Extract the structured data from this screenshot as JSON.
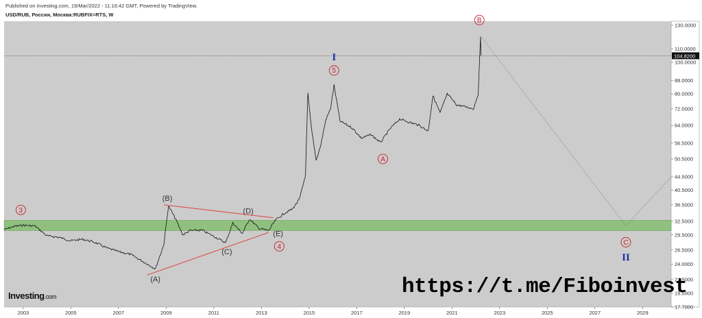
{
  "header": {
    "published": "Published on Investing.com, 19/Mar/2022 - 11:16:42 GMT, Powered by TradingView.",
    "symbol": "USD/RUB, Россия, Москва:RUBFIX=RTS, W"
  },
  "brand": {
    "name": "Investing",
    "suffix": ".com"
  },
  "watermark": "https://t.me/Fiboinvest",
  "current_price": "104.8200",
  "colors": {
    "background": "#cccccc",
    "zone": "#8fc07e",
    "price_line": "#111111",
    "trendline": "#e0403c",
    "wave_marker": "#c8202a",
    "roman": "#1a2fa0"
  },
  "chart_data": {
    "type": "line",
    "title": "",
    "xlabel": "",
    "ylabel": "",
    "x_ticks": [
      "2003",
      "2005",
      "2007",
      "2009",
      "2011",
      "2013",
      "2015",
      "2017",
      "2019",
      "2021",
      "2023",
      "2025",
      "2027",
      "2029"
    ],
    "y_ticks": [
      "130.0000",
      "110.0000",
      "100.0000",
      "88.0000",
      "80.0000",
      "72.0000",
      "64.0000",
      "56.5000",
      "50.5000",
      "44.5000",
      "40.5000",
      "36.5000",
      "32.5000",
      "29.5000",
      "26.5000",
      "24.0000",
      "21.5000",
      "19.5000",
      "17.7000"
    ],
    "ylim": [
      17.7,
      130
    ],
    "y_scale": "log",
    "xlim": [
      2002.2,
      2030.2
    ],
    "series": [
      {
        "values": [
          [
            2002.2,
            30.6
          ],
          [
            2002.6,
            31.3
          ],
          [
            2003.0,
            31.6
          ],
          [
            2003.5,
            31.4
          ],
          [
            2004.0,
            29.3
          ],
          [
            2004.5,
            29.0
          ],
          [
            2005.0,
            28.3
          ],
          [
            2005.5,
            28.6
          ],
          [
            2006.0,
            28.0
          ],
          [
            2006.5,
            26.9
          ],
          [
            2007.0,
            26.2
          ],
          [
            2007.5,
            25.7
          ],
          [
            2008.0,
            24.5
          ],
          [
            2008.55,
            23.2
          ],
          [
            2008.9,
            27.5
          ],
          [
            2009.1,
            36.2
          ],
          [
            2009.4,
            33.0
          ],
          [
            2009.7,
            29.5
          ],
          [
            2010.0,
            30.4
          ],
          [
            2010.5,
            30.5
          ],
          [
            2011.0,
            29.2
          ],
          [
            2011.5,
            27.9
          ],
          [
            2011.8,
            32.1
          ],
          [
            2012.2,
            29.8
          ],
          [
            2012.5,
            33.0
          ],
          [
            2012.9,
            30.9
          ],
          [
            2013.3,
            30.4
          ],
          [
            2013.6,
            32.8
          ],
          [
            2014.0,
            34.5
          ],
          [
            2014.3,
            35.4
          ],
          [
            2014.6,
            38.0
          ],
          [
            2014.85,
            45.0
          ],
          [
            2014.95,
            80.0
          ],
          [
            2015.1,
            62.5
          ],
          [
            2015.3,
            50.0
          ],
          [
            2015.5,
            56.0
          ],
          [
            2015.7,
            66.5
          ],
          [
            2015.9,
            72.0
          ],
          [
            2016.05,
            85.0
          ],
          [
            2016.3,
            66.0
          ],
          [
            2016.8,
            63.0
          ],
          [
            2017.2,
            58.5
          ],
          [
            2017.6,
            60.0
          ],
          [
            2018.0,
            56.7
          ],
          [
            2018.4,
            62.5
          ],
          [
            2018.8,
            67.0
          ],
          [
            2019.2,
            65.5
          ],
          [
            2019.6,
            64.2
          ],
          [
            2020.0,
            61.5
          ],
          [
            2020.2,
            79.0
          ],
          [
            2020.5,
            70.0
          ],
          [
            2020.8,
            80.0
          ],
          [
            2021.2,
            74.0
          ],
          [
            2021.6,
            73.0
          ],
          [
            2021.9,
            72.0
          ],
          [
            2022.1,
            80.0
          ],
          [
            2022.2,
            120.0
          ],
          [
            2022.22,
            104.82
          ]
        ]
      }
    ],
    "projection": [
      [
        2022.22,
        120.0
      ],
      [
        2028.3,
        31.5
      ],
      [
        2030.2,
        44.5
      ]
    ],
    "support_zone": [
      30.4,
      32.7
    ],
    "trendlines": [
      {
        "from": [
          2008.2,
          22.2
        ],
        "to": [
          2013.3,
          30.0
        ]
      },
      {
        "from": [
          2008.9,
          36.5
        ],
        "to": [
          2013.5,
          33.3
        ]
      }
    ],
    "wave_labels": [
      {
        "text": "(A)",
        "x": 2008.55,
        "y": 21.6,
        "style": "plain"
      },
      {
        "text": "(B)",
        "x": 2009.05,
        "y": 38.3,
        "style": "plain"
      },
      {
        "text": "(C)",
        "x": 2011.55,
        "y": 26.2,
        "style": "plain"
      },
      {
        "text": "(D)",
        "x": 2012.45,
        "y": 35.0,
        "style": "plain"
      },
      {
        "text": "(E)",
        "x": 2013.7,
        "y": 29.8,
        "style": "plain"
      },
      {
        "text": "3",
        "x": 2002.9,
        "y": 35.2,
        "style": "circle"
      },
      {
        "text": "4",
        "x": 2013.75,
        "y": 27.2,
        "style": "circle"
      },
      {
        "text": "5",
        "x": 2016.05,
        "y": 94.5,
        "style": "circle"
      },
      {
        "text": "A",
        "x": 2018.1,
        "y": 50.5,
        "style": "circle"
      },
      {
        "text": "B",
        "x": 2022.15,
        "y": 135.0,
        "style": "circle"
      },
      {
        "text": "C",
        "x": 2028.3,
        "y": 28.0,
        "style": "circle"
      },
      {
        "text": "I",
        "x": 2016.05,
        "y": 104.0,
        "style": "roman"
      },
      {
        "text": "II",
        "x": 2028.3,
        "y": 25.2,
        "style": "roman"
      }
    ],
    "grid": false,
    "legend": "none"
  }
}
